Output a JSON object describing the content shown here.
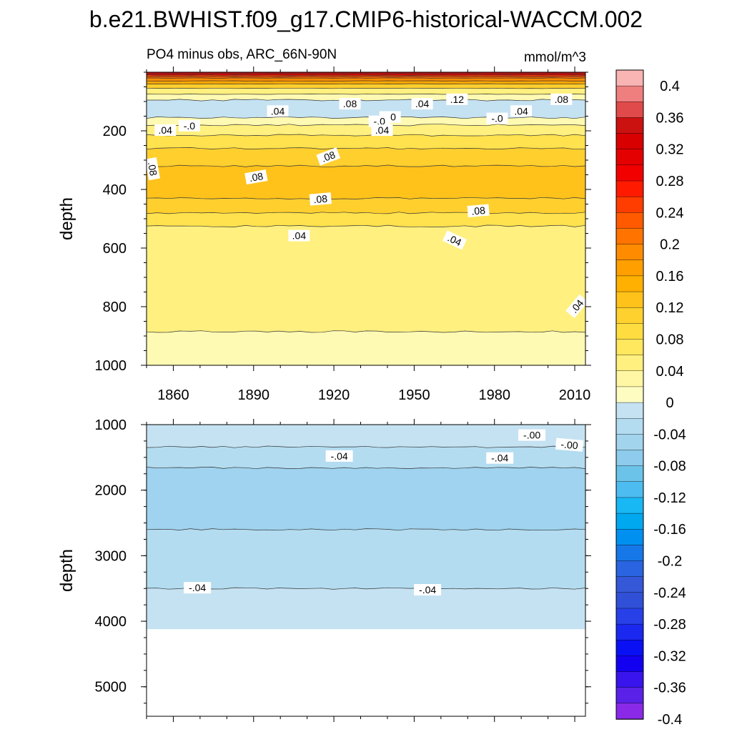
{
  "title": "b.e21.BWHIST.f09_g17.CMIP6-historical-WACCM.002",
  "subtitle_left": "PO4 minus obs, ARC_66N-90N",
  "units": "mmol/m^3",
  "chart_data": [
    {
      "type": "heatmap",
      "panel": "upper",
      "ylabel": "depth",
      "xlim": [
        1850,
        2014
      ],
      "ylim": [
        1000,
        0
      ],
      "xticks": [
        "1860",
        "1890",
        "1920",
        "1950",
        "1980",
        "2010"
      ],
      "yticks": [
        "200",
        "400",
        "600",
        "800",
        "1000"
      ],
      "layers": [
        {
          "depth_top": 0,
          "depth_bottom": 5,
          "value": 0.36
        },
        {
          "depth_top": 5,
          "depth_bottom": 10,
          "value": 0.3
        },
        {
          "depth_top": 10,
          "depth_bottom": 15,
          "value": 0.24
        },
        {
          "depth_top": 15,
          "depth_bottom": 20,
          "value": 0.2
        },
        {
          "depth_top": 20,
          "depth_bottom": 30,
          "value": 0.16
        },
        {
          "depth_top": 30,
          "depth_bottom": 40,
          "value": 0.12
        },
        {
          "depth_top": 40,
          "depth_bottom": 55,
          "value": 0.08
        },
        {
          "depth_top": 55,
          "depth_bottom": 75,
          "value": 0.04
        },
        {
          "depth_top": 75,
          "depth_bottom": 95,
          "value": 0.02
        },
        {
          "depth_top": 95,
          "depth_bottom": 155,
          "value": -0.02
        },
        {
          "depth_top": 155,
          "depth_bottom": 180,
          "value": 0.02
        },
        {
          "depth_top": 180,
          "depth_bottom": 215,
          "value": 0.04
        },
        {
          "depth_top": 215,
          "depth_bottom": 260,
          "value": 0.06
        },
        {
          "depth_top": 260,
          "depth_bottom": 320,
          "value": 0.08
        },
        {
          "depth_top": 320,
          "depth_bottom": 430,
          "value": 0.09
        },
        {
          "depth_top": 430,
          "depth_bottom": 480,
          "value": 0.08
        },
        {
          "depth_top": 480,
          "depth_bottom": 525,
          "value": 0.06
        },
        {
          "depth_top": 525,
          "depth_bottom": 885,
          "value": 0.04
        },
        {
          "depth_top": 885,
          "depth_bottom": 1000,
          "value": 0.02
        }
      ],
      "contour_labels": [
        {
          "text": ".04",
          "year": 1857,
          "depth": 200,
          "rotate": 0
        },
        {
          "text": "-.0",
          "year": 1866,
          "depth": 185,
          "rotate": 0
        },
        {
          "text": ".08",
          "year": 1852,
          "depth": 330,
          "rotate": 80
        },
        {
          "text": ".04",
          "year": 1899,
          "depth": 135,
          "rotate": 0
        },
        {
          "text": ".08",
          "year": 1926,
          "depth": 110,
          "rotate": 0
        },
        {
          "text": "-.0",
          "year": 1941,
          "depth": 155,
          "rotate": 0
        },
        {
          "text": "-.0",
          "year": 1937,
          "depth": 170,
          "rotate": 0
        },
        {
          "text": ".04",
          "year": 1953,
          "depth": 110,
          "rotate": 0
        },
        {
          "text": ".12",
          "year": 1966,
          "depth": 95,
          "rotate": 0
        },
        {
          "text": "-.0",
          "year": 1981,
          "depth": 160,
          "rotate": 0
        },
        {
          "text": ".04",
          "year": 1990,
          "depth": 135,
          "rotate": 0
        },
        {
          "text": ".08",
          "year": 2005,
          "depth": 95,
          "rotate": 0
        },
        {
          "text": ".04",
          "year": 1938,
          "depth": 200,
          "rotate": 0
        },
        {
          "text": ".08",
          "year": 1918,
          "depth": 290,
          "rotate": -20
        },
        {
          "text": ".08",
          "year": 1891,
          "depth": 360,
          "rotate": -10
        },
        {
          "text": ".08",
          "year": 1915,
          "depth": 435,
          "rotate": -5
        },
        {
          "text": ".08",
          "year": 1974,
          "depth": 475,
          "rotate": -5
        },
        {
          "text": ".04",
          "year": 1907,
          "depth": 560,
          "rotate": 0
        },
        {
          "text": ".04",
          "year": 1965,
          "depth": 575,
          "rotate": 25
        },
        {
          "text": ".04",
          "year": 2011,
          "depth": 800,
          "rotate": -50
        }
      ]
    },
    {
      "type": "heatmap",
      "panel": "lower",
      "ylabel": "depth",
      "xlim": [
        1850,
        2014
      ],
      "ylim": [
        5450,
        1000
      ],
      "yticks": [
        "1000",
        "2000",
        "3000",
        "4000",
        "5000"
      ],
      "layers": [
        {
          "depth_top": 1000,
          "depth_bottom": 1340,
          "value": -0.02
        },
        {
          "depth_top": 1340,
          "depth_bottom": 1660,
          "value": -0.04
        },
        {
          "depth_top": 1660,
          "depth_bottom": 2600,
          "value": -0.06
        },
        {
          "depth_top": 2600,
          "depth_bottom": 3500,
          "value": -0.04
        },
        {
          "depth_top": 3500,
          "depth_bottom": 4120,
          "value": -0.02
        }
      ],
      "bottom_depth": 4120,
      "contour_labels": [
        {
          "text": "-.00",
          "year": 1994,
          "depth": 1170,
          "rotate": 0
        },
        {
          "text": "-.00",
          "year": 2008,
          "depth": 1320,
          "rotate": 5
        },
        {
          "text": "-.04",
          "year": 1922,
          "depth": 1490,
          "rotate": 0
        },
        {
          "text": "-.04",
          "year": 1982,
          "depth": 1520,
          "rotate": 0
        },
        {
          "text": "-.04",
          "year": 1869,
          "depth": 3500,
          "rotate": 0
        },
        {
          "text": "-.04",
          "year": 1955,
          "depth": 3530,
          "rotate": 0
        }
      ]
    }
  ],
  "colorbar": {
    "labels": [
      "0.4",
      "0.36",
      "0.32",
      "0.28",
      "0.24",
      "0.2",
      "0.16",
      "0.12",
      "0.08",
      "0.04",
      "0",
      "-0.04",
      "-0.08",
      "-0.12",
      "-0.16",
      "-0.2",
      "-0.24",
      "-0.28",
      "-0.32",
      "-0.36",
      "-0.4"
    ],
    "colors": [
      "#f9b4b4",
      "#ef7f7f",
      "#e14a4a",
      "#cc1111",
      "#d80000",
      "#e40000",
      "#f20000",
      "#ff1a00",
      "#ff3d00",
      "#ff5a00",
      "#ff7400",
      "#ff8b00",
      "#ff9f00",
      "#ffb000",
      "#ffc21a",
      "#ffd12e",
      "#ffdd40",
      "#ffe75e",
      "#fff07f",
      "#fff7a3",
      "#fffcc2",
      "#c5e2f2",
      "#b4dcf0",
      "#a3d4ee",
      "#8ecbec",
      "#6cc3ea",
      "#4dbcf1",
      "#18b8f5",
      "#00a8f0",
      "#0090f0",
      "#1678e8",
      "#2a64e0",
      "#3558d8",
      "#3050d8",
      "#2840e8",
      "#1a28f0",
      "#0a10f4",
      "#1400f0",
      "#3a14ec",
      "#5a22e8",
      "#8a2ae8"
    ]
  }
}
